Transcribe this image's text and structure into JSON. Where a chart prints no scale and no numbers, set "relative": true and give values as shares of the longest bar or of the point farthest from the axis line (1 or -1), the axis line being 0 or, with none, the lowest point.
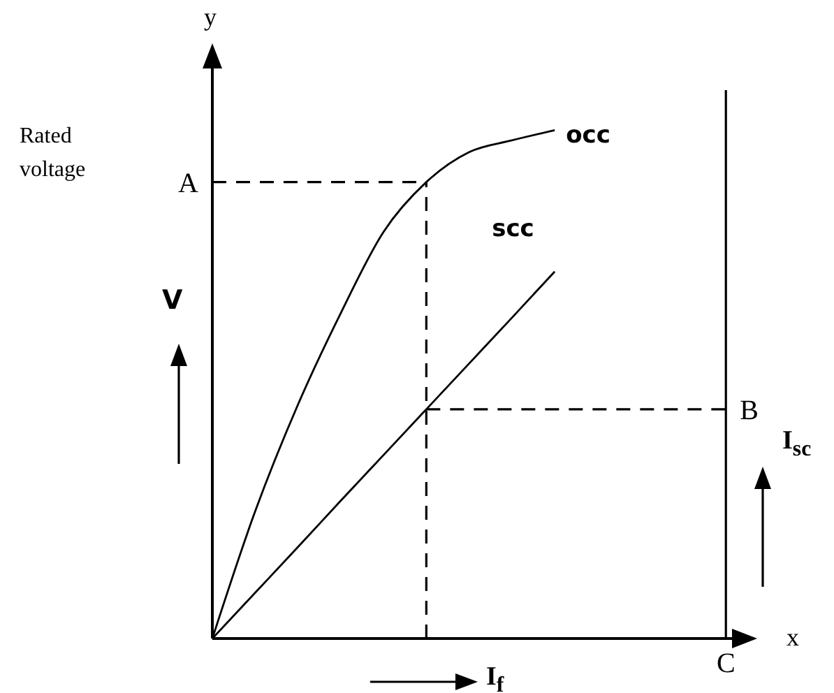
{
  "chart_data": {
    "type": "line",
    "relative": true,
    "xlabel": "I$_{f}$",
    "ylabel": "V",
    "legend": false,
    "grid": false,
    "categories": [
      null,
      null,
      null,
      null,
      null,
      null,
      null,
      null,
      null,
      null,
      null,
      null,
      null
    ],
    "series": [
      {
        "name": "occ",
        "color": "#000000",
        "values": [
          0,
          0.25,
          0.46,
          0.64,
          0.8,
          0.898,
          0.957,
          0.98,
          1,
          null,
          null,
          null,
          null
        ]
      },
      {
        "name": "scc",
        "color": "#000000",
        "values": [
          0,
          0.09,
          0.18,
          0.271,
          0.361,
          0.451,
          0.541,
          0.631,
          0.722,
          null,
          null,
          null,
          null
        ]
      }
    ],
    "ref_lines": [
      {
        "axis": "y",
        "value": 0.898,
        "label": "A",
        "line_style": "dashed",
        "color": "#000000"
      },
      {
        "axis": "y",
        "value": 0.451,
        "label": "B",
        "line_style": "dashed",
        "color": "#000000"
      }
    ],
    "annotations": [
      "y",
      "x",
      "Rated voltage",
      "I$_{sc}$",
      "C"
    ]
  }
}
